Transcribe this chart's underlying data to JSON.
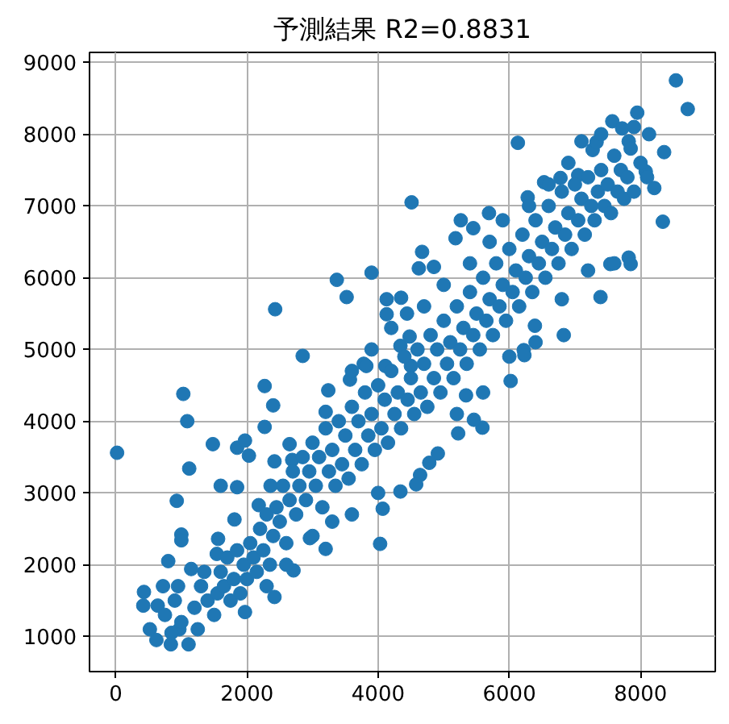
{
  "chart_data": {
    "type": "scatter",
    "title": "予測結果 R2=0.8831",
    "color": "#1f77b4",
    "marker": "circle",
    "grid": true,
    "xlim": [
      -400,
      9140
    ],
    "ylim": [
      510,
      9140
    ],
    "xticks": [
      0,
      2000,
      4000,
      6000,
      8000
    ],
    "yticks": [
      1000,
      2000,
      3000,
      4000,
      5000,
      6000,
      7000,
      8000,
      9000
    ],
    "x": [
      4510,
      3370,
      3900,
      3520,
      2430,
      2850,
      4130,
      4350,
      4130,
      4440,
      4340,
      4480,
      3780,
      4110,
      4500,
      8540,
      8720,
      7950,
      7570,
      6130,
      8130,
      8360,
      8080,
      8210,
      8340,
      7820,
      7850,
      7540,
      7390,
      6830,
      6220,
      6390,
      5260,
      5450,
      5180,
      5690,
      4670,
      4620,
      4850,
      6280,
      6530,
      6780,
      7050,
      7270,
      7330,
      7720,
      7820,
      20,
      1030,
      1090,
      1120,
      930,
      1000,
      1000,
      800,
      430,
      420,
      640,
      520,
      620,
      840,
      1110,
      970,
      720,
      1150,
      1480,
      1600,
      1850,
      1850,
      1970,
      2030,
      2270,
      2400,
      2270,
      2420,
      2690,
      2650,
      2360,
      2180,
      1810,
      1560,
      1540,
      1970,
      2420,
      2710,
      3200,
      2960,
      4030,
      4070,
      4340,
      3570,
      3820,
      3240,
      3200,
      6020,
      5590,
      5460,
      5220,
      5340,
      4910,
      4780,
      4640,
      4580,
      6230,
      750,
      900,
      1000,
      850,
      950,
      1200,
      1250,
      1300,
      1400,
      1350,
      1500,
      1550,
      1600,
      1650,
      1700,
      1750,
      1800,
      1850,
      1900,
      1950,
      2000,
      2050,
      2100,
      2150,
      2200,
      2250,
      2300,
      2350,
      2400,
      2450,
      2500,
      2550,
      2600,
      2650,
      2700,
      2750,
      2800,
      2850,
      2900,
      2950,
      3000,
      3050,
      3100,
      3150,
      3200,
      3250,
      3300,
      3350,
      3400,
      3450,
      3500,
      3550,
      3600,
      3650,
      3700,
      3750,
      3800,
      3850,
      3900,
      3950,
      4000,
      4050,
      4100,
      4150,
      4200,
      4250,
      4300,
      4350,
      4400,
      4450,
      4500,
      4550,
      4600,
      4650,
      4700,
      4750,
      4800,
      4850,
      4900,
      4950,
      5000,
      5050,
      5100,
      5150,
      5200,
      5250,
      5300,
      5350,
      5400,
      5450,
      5500,
      5550,
      5600,
      5650,
      5700,
      5750,
      5800,
      5850,
      5900,
      5950,
      6000,
      6050,
      6100,
      6150,
      6200,
      6250,
      6300,
      6350,
      6400,
      6450,
      6500,
      6550,
      6600,
      6650,
      6700,
      6750,
      6800,
      6850,
      6900,
      6950,
      7000,
      7050,
      7100,
      7150,
      7200,
      7250,
      7300,
      7350,
      7400,
      7450,
      7500,
      7550,
      7600,
      7650,
      7700,
      7750,
      7800,
      7850,
      7900,
      8000,
      8100,
      3600,
      3900,
      4200,
      4700,
      5000,
      5400,
      5700,
      5900,
      6300,
      6600,
      6900,
      7100,
      7400,
      7900,
      2300,
      2600,
      3000,
      3300,
      3600,
      4000,
      5200,
      5600,
      6000,
      6400,
      6800,
      7200,
      7600
    ],
    "values": [
      7050,
      5970,
      6070,
      5730,
      5560,
      4910,
      5700,
      5720,
      5490,
      5500,
      5050,
      5180,
      4800,
      4770,
      4770,
      8750,
      8350,
      8300,
      8180,
      7880,
      8000,
      7750,
      7480,
      7250,
      6780,
      6280,
      6190,
      6190,
      5730,
      5200,
      4990,
      5330,
      6800,
      6690,
      6550,
      6900,
      6360,
      6130,
      6150,
      7120,
      7330,
      7390,
      7430,
      7780,
      7890,
      8080,
      7900,
      3560,
      4380,
      4000,
      3340,
      2890,
      2420,
      2340,
      2050,
      1620,
      1430,
      1430,
      1100,
      950,
      890,
      890,
      1100,
      1700,
      1940,
      3680,
      3100,
      3080,
      3630,
      3730,
      3520,
      4490,
      4220,
      3920,
      3440,
      3460,
      3680,
      3100,
      2830,
      2630,
      2360,
      2150,
      1340,
      1550,
      1920,
      2220,
      2370,
      2290,
      2780,
      3020,
      4580,
      4770,
      4430,
      4130,
      4560,
      3910,
      4020,
      3830,
      4360,
      3550,
      3420,
      3250,
      3120,
      4920,
      1300,
      1500,
      1200,
      1050,
      1700,
      1400,
      1100,
      1700,
      1500,
      1900,
      1300,
      1600,
      1900,
      1700,
      2100,
      1500,
      1800,
      2200,
      1600,
      2000,
      1800,
      2300,
      2100,
      1900,
      2500,
      2200,
      2700,
      2000,
      2400,
      2800,
      2600,
      3100,
      2300,
      2900,
      3300,
      2700,
      3100,
      3500,
      2900,
      3300,
      3700,
      3100,
      3500,
      2800,
      3900,
      3300,
      3600,
      3100,
      4000,
      3400,
      3800,
      3200,
      4200,
      3600,
      4000,
      3400,
      4400,
      3800,
      4100,
      3600,
      4500,
      3900,
      4300,
      3700,
      4700,
      4100,
      4400,
      3900,
      4900,
      4300,
      4600,
      4100,
      5000,
      4400,
      4800,
      4200,
      5200,
      4600,
      5000,
      4400,
      5400,
      4800,
      5100,
      4600,
      5600,
      5000,
      5300,
      4800,
      5800,
      5200,
      5500,
      5000,
      6000,
      5400,
      5700,
      5200,
      6200,
      5600,
      5900,
      5400,
      6400,
      5800,
      6100,
      5600,
      6600,
      6000,
      6300,
      5800,
      6800,
      6200,
      6500,
      6000,
      7000,
      6400,
      6700,
      6200,
      7200,
      6600,
      6900,
      6400,
      7300,
      6800,
      7100,
      6600,
      7400,
      7000,
      6800,
      7200,
      7500,
      7000,
      7300,
      6900,
      7700,
      7200,
      7500,
      7100,
      7400,
      7800,
      7200,
      7600,
      7400,
      4700,
      5000,
      5300,
      5600,
      5900,
      6200,
      6500,
      6800,
      7000,
      7300,
      7600,
      7900,
      8000,
      8100,
      1700,
      2000,
      2400,
      2600,
      2700,
      3000,
      4100,
      4400,
      4900,
      5100,
      5700,
      6100,
      6200
    ]
  }
}
